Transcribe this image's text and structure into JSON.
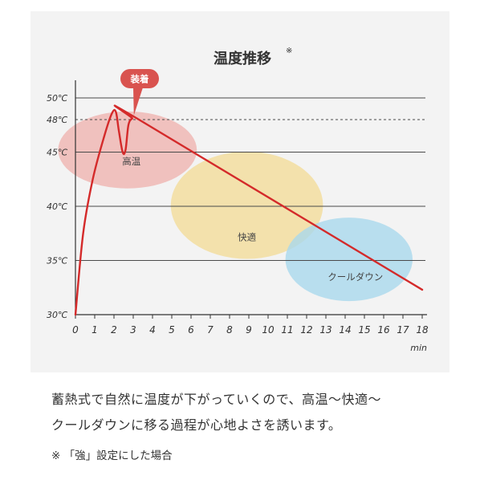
{
  "chart_data": {
    "type": "line",
    "title": "温度推移",
    "title_mark": "※",
    "xlabel": "min",
    "ylabel": "",
    "x_ticks": [
      0,
      1,
      2,
      3,
      4,
      5,
      6,
      7,
      8,
      9,
      10,
      11,
      12,
      13,
      14,
      15,
      16,
      17,
      18
    ],
    "xlim": [
      0,
      18
    ],
    "y_ticks": [
      {
        "value": 30,
        "label": "30℃",
        "line": "none"
      },
      {
        "value": 35,
        "label": "35℃",
        "line": "solid"
      },
      {
        "value": 40,
        "label": "40℃",
        "line": "solid"
      },
      {
        "value": 45,
        "label": "45℃",
        "line": "solid"
      },
      {
        "value": 48,
        "label": "48℃",
        "line": "dashed"
      },
      {
        "value": 50,
        "label": "50℃",
        "line": "solid"
      }
    ],
    "ylim": [
      30,
      51
    ],
    "series": [
      {
        "color": "#d42a2a",
        "x": [
          0,
          0.4,
          0.9,
          1.5,
          1.9,
          2.1,
          2.25,
          2.45,
          2.6,
          2.75,
          2.95,
          3.2,
          18
        ],
        "y": [
          30,
          37.5,
          42.5,
          46.5,
          48.6,
          48.7,
          47,
          45,
          45.2,
          47.5,
          48.1,
          48.1,
          32.3
        ]
      }
    ],
    "zones": [
      {
        "label": "高温",
        "color": "#efb4b0",
        "cx": 2.7,
        "cy": 45.2,
        "rx": 3.6,
        "ry": 3.55
      },
      {
        "label": "快適",
        "color": "#f3dc9a",
        "cx": 8.9,
        "cy": 40.1,
        "rx": 3.95,
        "ry": 4.95
      },
      {
        "label": "クールダウン",
        "color": "#a9d8ec",
        "cx": 14.2,
        "cy": 35.1,
        "rx": 3.3,
        "ry": 3.85
      }
    ],
    "annotation": {
      "label": "装着",
      "x": 2.95,
      "y": 48.1,
      "color": "#d9534f"
    },
    "grid": true,
    "legend": "none"
  },
  "caption": {
    "line1": "蓄熱式で自然に温度が下がっていくので、高温～快適～",
    "line2": "クールダウンに移る過程が心地よさを誘います。",
    "footnote": "※ 「強」設定にした場合"
  }
}
